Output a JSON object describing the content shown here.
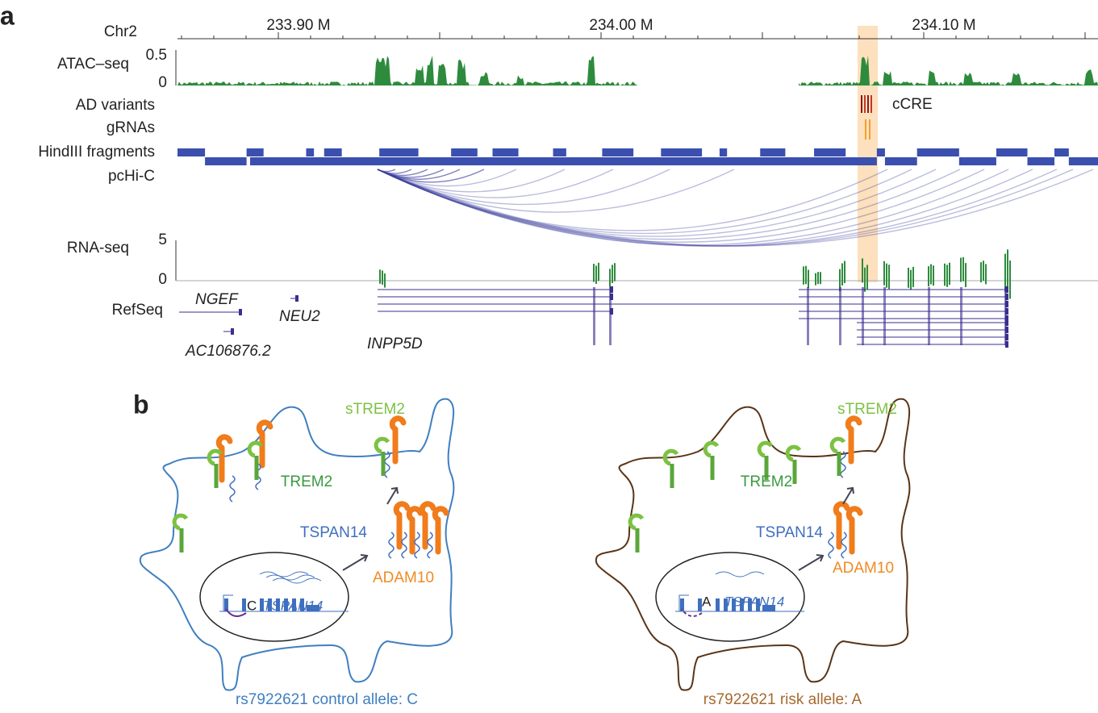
{
  "panel_a": {
    "label": "a",
    "chromosome": "Chr2",
    "positions": [
      "233.90 M",
      "234.00 M",
      "234.10 M"
    ],
    "tracks": {
      "atac": {
        "label": "ATAC–seq",
        "ticks": [
          "0.5",
          "0"
        ]
      },
      "ad_variants": "AD variants",
      "ccre": "cCRE",
      "grnas": "gRNAs",
      "hindiii": "HindIII fragments",
      "pchic": "pcHi-C",
      "rnaseq": {
        "label": "RNA-seq",
        "ticks": [
          "5",
          "0"
        ]
      },
      "refseq": {
        "label": "RefSeq",
        "genes": [
          "NGEF",
          "NEU2",
          "AC106876.2",
          "INPP5D"
        ]
      }
    }
  },
  "panel_b": {
    "label": "b",
    "cells": [
      {
        "strem2": "sTREM2",
        "trem2": "TREM2",
        "tspan14": "TSPAN14",
        "adam10": "ADAM10",
        "allele": "C",
        "gene": "TSPAN14",
        "caption": "rs7922621 control allele: C"
      },
      {
        "strem2": "sTREM2",
        "trem2": "TREM2",
        "tspan14": "TSPAN14",
        "adam10": "ADAM10",
        "allele": "A",
        "gene": "TSPAN14",
        "caption": "rs7922621 risk allele: A"
      }
    ]
  }
}
